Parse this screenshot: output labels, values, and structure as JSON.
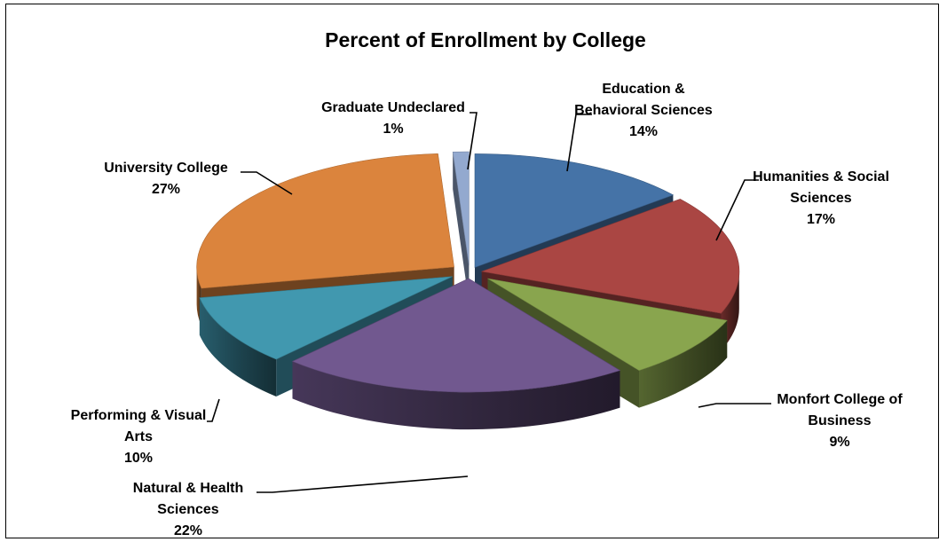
{
  "chart_data": {
    "type": "pie",
    "title": "Percent of Enrollment by College",
    "style": "3d-exploded",
    "slices": [
      {
        "label": [
          "Education &",
          "Behavioral Sciences"
        ],
        "pct_label": "14%",
        "value": 14,
        "color": "#4573a7"
      },
      {
        "label": [
          "Humanities & Social",
          "Sciences"
        ],
        "pct_label": "17%",
        "value": 17,
        "color": "#aa4643"
      },
      {
        "label": [
          "Monfort College of",
          "Business"
        ],
        "pct_label": "9%",
        "value": 9,
        "color": "#89a54e"
      },
      {
        "label": [
          "Natural & Health",
          "Sciences"
        ],
        "pct_label": "22%",
        "value": 22,
        "color": "#71588f"
      },
      {
        "label": [
          "Performing & Visual",
          "Arts"
        ],
        "pct_label": "10%",
        "value": 10,
        "color": "#4198af"
      },
      {
        "label": [
          "University College"
        ],
        "pct_label": "27%",
        "value": 27,
        "color": "#db843d"
      },
      {
        "label": [
          "Graduate Undeclared"
        ],
        "pct_label": "1%",
        "value": 1,
        "color": "#93a9cf"
      }
    ]
  }
}
